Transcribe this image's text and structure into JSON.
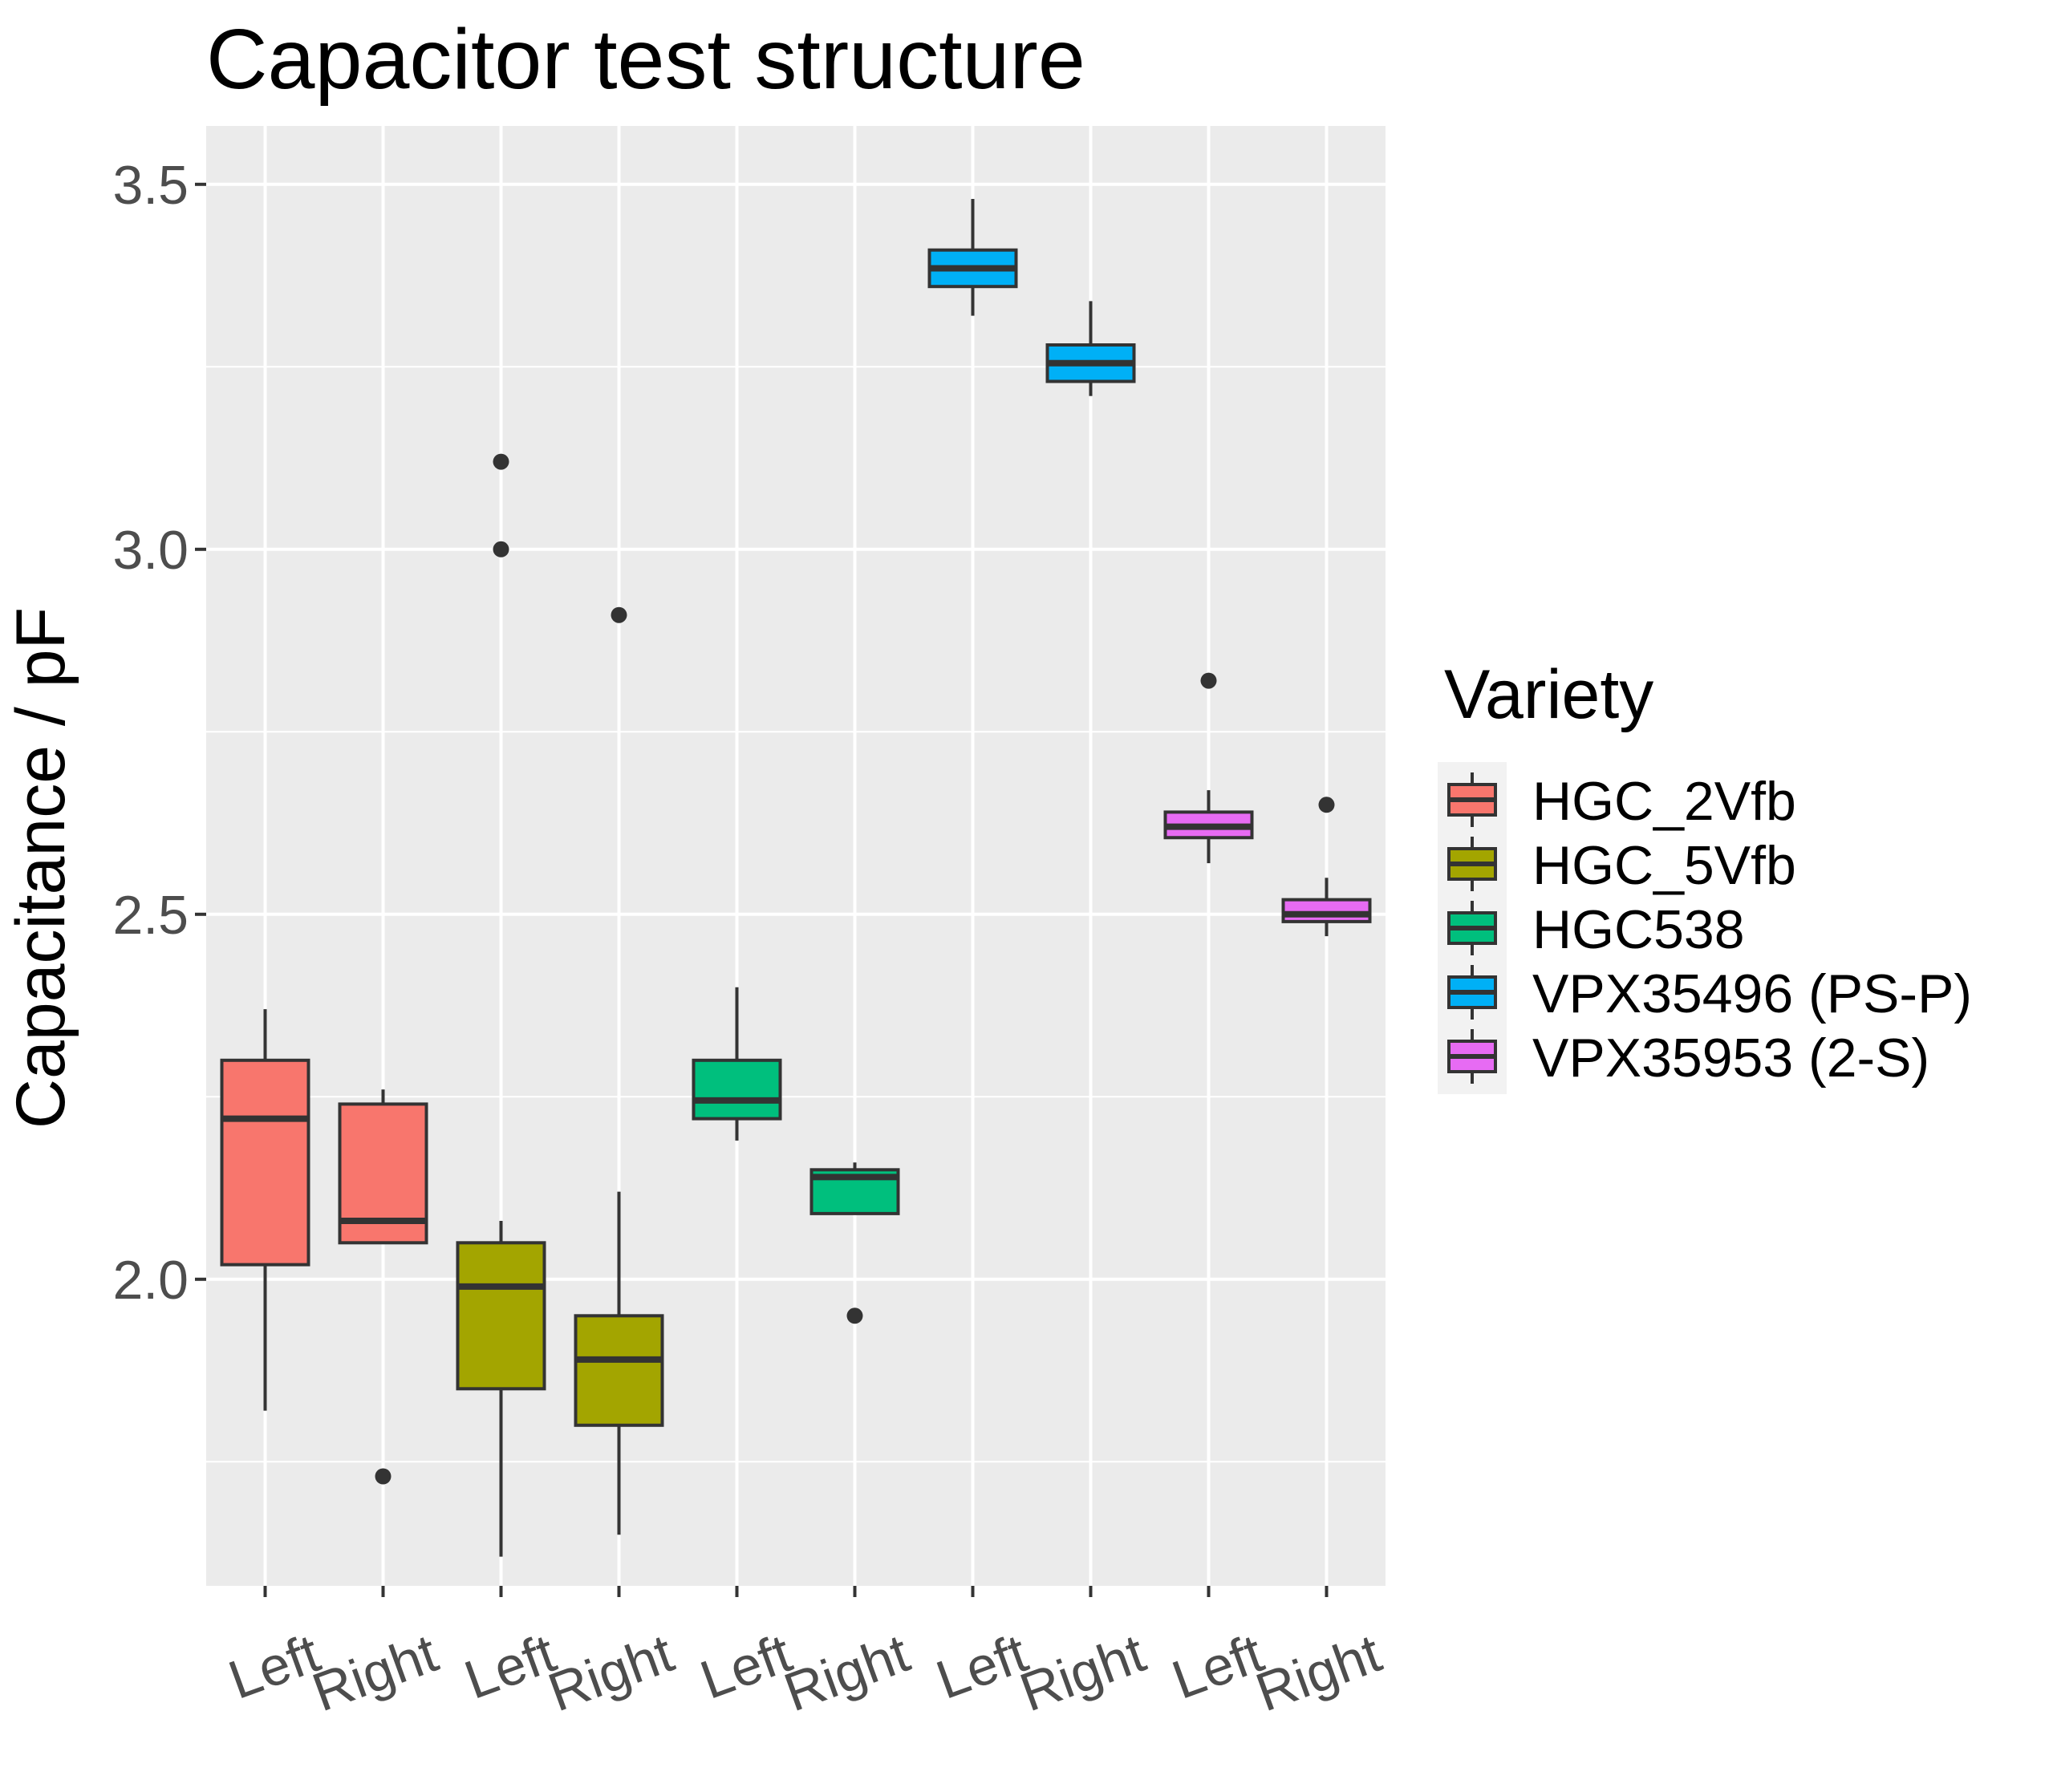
{
  "chart_data": {
    "type": "boxplot",
    "title": "Capacitor test structure",
    "xlabel": "",
    "ylabel": "Capacitance / pF",
    "ylim": [
      1.58,
      3.58
    ],
    "yticks": [
      "2.0",
      "2.5",
      "3.0",
      "3.5"
    ],
    "ytick_values": [
      2.0,
      2.5,
      3.0,
      3.5
    ],
    "grid": true,
    "legend": {
      "title": "Variety",
      "position": "right",
      "items": [
        {
          "label": "HGC_2Vfb",
          "color": "#F8766D"
        },
        {
          "label": "HGC_5Vfb",
          "color": "#A3A500"
        },
        {
          "label": "HGC538",
          "color": "#00BF7D"
        },
        {
          "label": "VPX35496 (PS-P)",
          "color": "#00B0F6"
        },
        {
          "label": "VPX35953 (2-S)",
          "color": "#E76BF3"
        }
      ]
    },
    "categories": [
      "Left",
      "Right",
      "Left",
      "Right",
      "Left",
      "Right",
      "Left",
      "Right",
      "Left",
      "Right"
    ],
    "boxes": [
      {
        "category": "Left",
        "variety": "HGC_2Vfb",
        "whisker_low": 1.82,
        "q1": 2.02,
        "median": 2.22,
        "q3": 2.3,
        "whisker_high": 2.37,
        "outliers": []
      },
      {
        "category": "Right",
        "variety": "HGC_2Vfb",
        "whisker_low": 2.05,
        "q1": 2.05,
        "median": 2.08,
        "q3": 2.24,
        "whisker_high": 2.26,
        "outliers": [
          1.73
        ]
      },
      {
        "category": "Left",
        "variety": "HGC_5Vfb",
        "whisker_low": 1.62,
        "q1": 1.85,
        "median": 1.99,
        "q3": 2.05,
        "whisker_high": 2.08,
        "outliers": [
          3.0,
          3.12
        ]
      },
      {
        "category": "Right",
        "variety": "HGC_5Vfb",
        "whisker_low": 1.65,
        "q1": 1.8,
        "median": 1.89,
        "q3": 1.95,
        "whisker_high": 2.12,
        "outliers": [
          2.91
        ]
      },
      {
        "category": "Left",
        "variety": "HGC538",
        "whisker_low": 2.19,
        "q1": 2.22,
        "median": 2.245,
        "q3": 2.3,
        "whisker_high": 2.4,
        "outliers": []
      },
      {
        "category": "Right",
        "variety": "HGC538",
        "whisker_low": 2.09,
        "q1": 2.09,
        "median": 2.14,
        "q3": 2.15,
        "whisker_high": 2.16,
        "outliers": [
          1.95
        ]
      },
      {
        "category": "Left",
        "variety": "VPX35496 (PS-P)",
        "whisker_low": 3.32,
        "q1": 3.36,
        "median": 3.385,
        "q3": 3.41,
        "whisker_high": 3.48,
        "outliers": []
      },
      {
        "category": "Right",
        "variety": "VPX35496 (PS-P)",
        "whisker_low": 3.21,
        "q1": 3.23,
        "median": 3.255,
        "q3": 3.28,
        "whisker_high": 3.34,
        "outliers": []
      },
      {
        "category": "Left",
        "variety": "VPX35953 (2-S)",
        "whisker_low": 2.57,
        "q1": 2.605,
        "median": 2.62,
        "q3": 2.64,
        "whisker_high": 2.67,
        "outliers": [
          2.82
        ]
      },
      {
        "category": "Right",
        "variety": "VPX35953 (2-S)",
        "whisker_low": 2.47,
        "q1": 2.49,
        "median": 2.5,
        "q3": 2.52,
        "whisker_high": 2.55,
        "outliers": [
          2.65
        ]
      }
    ]
  }
}
